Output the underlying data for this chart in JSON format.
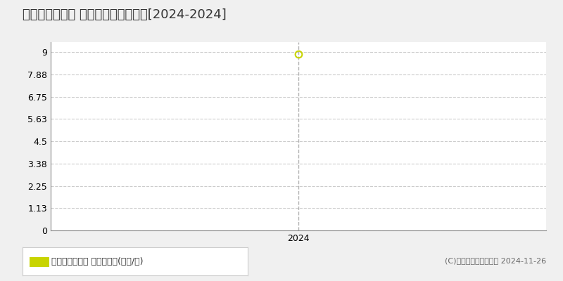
{
  "title": "富田林市川向町 マンション価格推移[2024-2024]",
  "x_data": [
    2024
  ],
  "y_data": [
    8.9
  ],
  "yticks": [
    0,
    1.13,
    2.25,
    3.38,
    4.5,
    5.63,
    6.75,
    7.88,
    9
  ],
  "ylim": [
    0,
    9.5
  ],
  "xlim": [
    2022.5,
    2025.5
  ],
  "xticks": [
    2024
  ],
  "line_color": "#c8d400",
  "marker_color": "#c8d400",
  "legend_label": "マンション価格 平均嵪単価(万円/嵪)",
  "copyright_text": "(C)土地価格ドットコム 2024-11-26",
  "bg_color": "#f0f0f0",
  "plot_bg_color": "#ffffff",
  "grid_color": "#cccccc",
  "title_fontsize": 13,
  "tick_fontsize": 9,
  "legend_fontsize": 9,
  "copyright_fontsize": 8
}
